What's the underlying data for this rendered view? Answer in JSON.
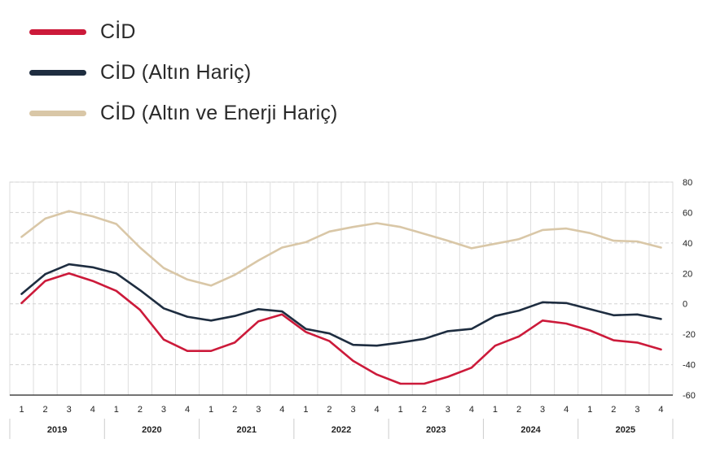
{
  "chart_data": {
    "type": "line",
    "title": "",
    "xlabel": "",
    "ylabel": "",
    "ylim": [
      -60,
      80
    ],
    "yticks": [
      80,
      60,
      40,
      20,
      0,
      -20,
      -40,
      -60
    ],
    "grid": true,
    "legend_position": "top-left",
    "years": [
      "2019",
      "2020",
      "2021",
      "2022",
      "2023",
      "2024",
      "2025"
    ],
    "quarters": [
      "1",
      "2",
      "3",
      "4"
    ],
    "categories": [
      "2019-1",
      "2019-2",
      "2019-3",
      "2019-4",
      "2020-1",
      "2020-2",
      "2020-3",
      "2020-4",
      "2021-1",
      "2021-2",
      "2021-3",
      "2021-4",
      "2022-1",
      "2022-2",
      "2022-3",
      "2022-4",
      "2023-1",
      "2023-2",
      "2023-3",
      "2023-4",
      "2024-1",
      "2024-2",
      "2024-3",
      "2024-4",
      "2025-1",
      "2025-2",
      "2025-3",
      "2025-4"
    ],
    "x": [
      1,
      1.5,
      2,
      2.5,
      3,
      3.5,
      4,
      4.5,
      5,
      5.5,
      6,
      6.5,
      7,
      7.5,
      8,
      8.5,
      9,
      9.5,
      10,
      10.5,
      11,
      11.5,
      12,
      12.5,
      13,
      13.5,
      14,
      14.5,
      15,
      15.5,
      16,
      16.5,
      17,
      17.5,
      18,
      18.5,
      19,
      19.5,
      20,
      20.5,
      21,
      21.5,
      22,
      22.5,
      23,
      23.5,
      24,
      24.5,
      25,
      25.5,
      26,
      26.5,
      27,
      27.5,
      28
    ],
    "series": [
      {
        "name": "CİD",
        "color": "#cc1a3a",
        "values": [
          0.5,
          15,
          20,
          15,
          8.5,
          -4,
          -23.5,
          -31,
          -31,
          -25.5,
          -11.5,
          -7,
          -18.5,
          -24.5,
          -37.5,
          -46.5,
          -52.5,
          -52.5,
          -48,
          -42,
          -27.5,
          -21.5,
          -11,
          -13,
          -17.5,
          -24,
          -25.5,
          -30
        ]
      },
      {
        "name": "CİD (Altın Hariç)",
        "color": "#1e2d40",
        "values": [
          6.5,
          19.5,
          26,
          24,
          20,
          9,
          -3,
          -8.5,
          -11,
          -8,
          -3.5,
          -5,
          -16.5,
          -19.5,
          -27,
          -27.5,
          -25.5,
          -23,
          -18,
          -16.5,
          -8,
          -4.5,
          1,
          0.5,
          -3.5,
          -7.5,
          -7,
          -10
        ]
      },
      {
        "name": "CİD (Altın ve Enerji Hariç)",
        "color": "#d9c7a7",
        "values": [
          44,
          56,
          61,
          57.5,
          52.5,
          37,
          23.5,
          16,
          12,
          19,
          28.5,
          37,
          40.5,
          47.5,
          50.5,
          53,
          50.5,
          46,
          41.5,
          36.5,
          39.5,
          42.5,
          48.5,
          49.5,
          46.5,
          41.5,
          41,
          37
        ]
      }
    ]
  }
}
